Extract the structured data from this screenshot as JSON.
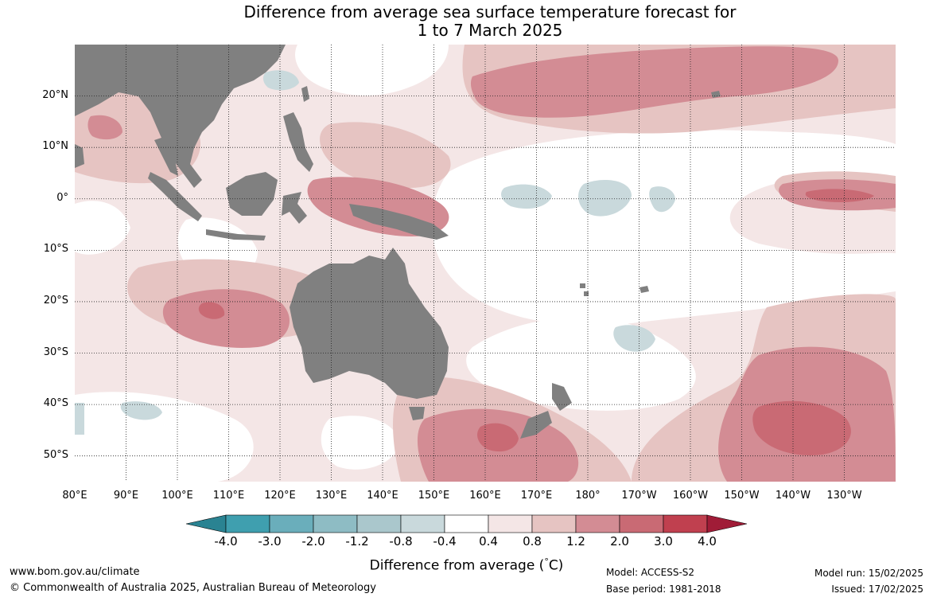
{
  "title_line1": "Difference from average sea surface temperature forecast for",
  "title_line2": "1 to 7 March 2025",
  "map": {
    "lon_range": [
      80,
      240
    ],
    "lat_range": [
      -55,
      30
    ],
    "lat_labels": [
      "20°N",
      "10°N",
      "0°",
      "10°S",
      "20°S",
      "30°S",
      "40°S",
      "50°S"
    ],
    "lon_labels": [
      "80°E",
      "90°E",
      "100°E",
      "110°E",
      "120°E",
      "130°E",
      "140°E",
      "150°E",
      "160°E",
      "170°E",
      "180°",
      "170°W",
      "160°W",
      "150°W",
      "140°W",
      "130°W"
    ],
    "land_color": "#808080",
    "grid": "dotted"
  },
  "colorbar": {
    "ticks": [
      "-4.0",
      "-3.0",
      "-2.0",
      "-1.2",
      "-0.8",
      "-0.4",
      "0.4",
      "0.8",
      "1.2",
      "2.0",
      "3.0",
      "4.0"
    ],
    "colors": [
      "#2a8392",
      "#3f9faf",
      "#6aaebb",
      "#8ebcc4",
      "#aac7cc",
      "#c9d9dc",
      "#ffffff",
      "#f4e6e6",
      "#e6c4c2",
      "#d38c94",
      "#c96a74",
      "#c0404f",
      "#a01c37"
    ],
    "title": "Difference from average (°C)",
    "title_prefix": "Difference from average (",
    "title_degree": "°",
    "title_unit": "C)"
  },
  "footer": {
    "url": "www.bom.gov.au/climate",
    "copyright": "© Commonwealth of Australia 2025, Australian Bureau of Meteorology",
    "model": "Model: ACCESS-S2",
    "base_period": "Base period: 1981-2018",
    "model_run": "Model run: 15/02/2025",
    "issued": "Issued: 17/02/2025"
  }
}
